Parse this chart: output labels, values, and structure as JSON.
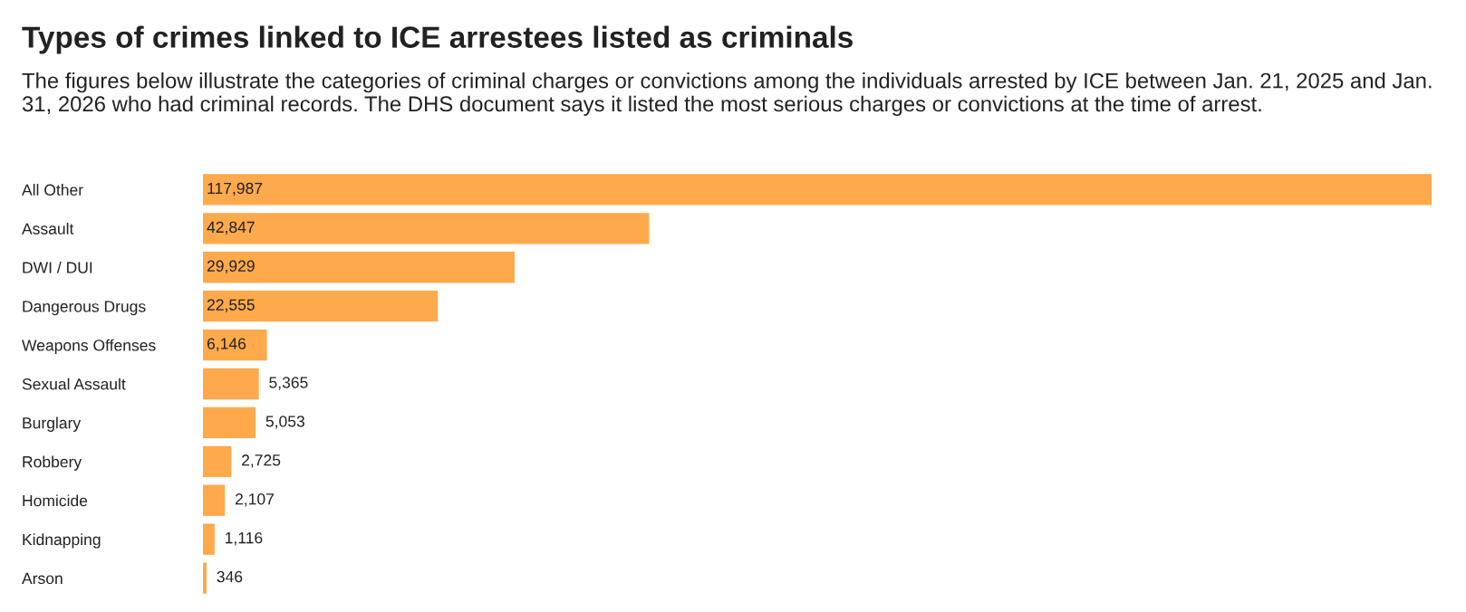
{
  "chart_data": {
    "type": "bar",
    "orientation": "horizontal",
    "title": "Types of crimes linked to ICE arrestees listed as criminals",
    "subtitle": "The figures below illustrate the categories of criminal charges or convictions among the individuals arrested by ICE between Jan. 21, 2025 and Jan. 31, 2026 who had criminal records. The DHS document says it listed the most serious charges or convictions at the time of arrest.",
    "categories": [
      "All Other",
      "Assault",
      "DWI / DUI",
      "Dangerous Drugs",
      "Weapons Offenses",
      "Sexual Assault",
      "Burglary",
      "Robbery",
      "Homicide",
      "Kidnapping",
      "Arson"
    ],
    "values": [
      117987,
      42847,
      29929,
      22555,
      6146,
      5365,
      5053,
      2725,
      2107,
      1116,
      346
    ],
    "value_labels": [
      "117,987",
      "42,847",
      "29,929",
      "22,555",
      "6,146",
      "5,365",
      "5,053",
      "2,725",
      "2,107",
      "1,116",
      "346"
    ],
    "color": "#ffa94d",
    "grid": false,
    "legend": false
  }
}
